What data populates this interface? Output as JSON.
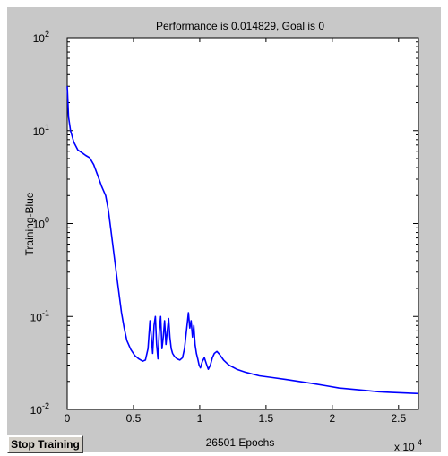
{
  "chart_data": {
    "type": "line",
    "title": "Performance is 0.014829, Goal is 0",
    "xlabel": "26501 Epochs",
    "ylabel": "Training-Blue",
    "x_multiplier_label": "x 10",
    "x_multiplier_exponent": "4",
    "xlim": [
      0,
      26501
    ],
    "ylim": [
      0.01,
      100
    ],
    "yscale": "log",
    "grid": false,
    "x_ticks": [
      {
        "value": 0,
        "label": "0"
      },
      {
        "value": 5000,
        "label": "0.5"
      },
      {
        "value": 10000,
        "label": "1"
      },
      {
        "value": 15000,
        "label": "1.5"
      },
      {
        "value": 20000,
        "label": "2"
      },
      {
        "value": 25000,
        "label": "2.5"
      }
    ],
    "y_ticks": [
      {
        "value": 0.01,
        "base": "10",
        "exp": "-2"
      },
      {
        "value": 0.1,
        "base": "10",
        "exp": "-1"
      },
      {
        "value": 1,
        "base": "10",
        "exp": "0"
      },
      {
        "value": 10,
        "base": "10",
        "exp": "1"
      },
      {
        "value": 100,
        "base": "10",
        "exp": "2"
      }
    ],
    "series": [
      {
        "color": "#0000ff",
        "points": [
          [
            0,
            30
          ],
          [
            30,
            25
          ],
          [
            100,
            14
          ],
          [
            250,
            10
          ],
          [
            500,
            7.5
          ],
          [
            800,
            6.2
          ],
          [
            1100,
            5.8
          ],
          [
            1400,
            5.4
          ],
          [
            1700,
            5.1
          ],
          [
            2000,
            4.3
          ],
          [
            2300,
            3.3
          ],
          [
            2600,
            2.5
          ],
          [
            2900,
            2.0
          ],
          [
            3100,
            1.4
          ],
          [
            3300,
            0.85
          ],
          [
            3500,
            0.5
          ],
          [
            3700,
            0.3
          ],
          [
            3900,
            0.18
          ],
          [
            4100,
            0.11
          ],
          [
            4300,
            0.075
          ],
          [
            4500,
            0.055
          ],
          [
            4800,
            0.044
          ],
          [
            5100,
            0.038
          ],
          [
            5400,
            0.035
          ],
          [
            5700,
            0.033
          ],
          [
            5900,
            0.034
          ],
          [
            6100,
            0.045
          ],
          [
            6250,
            0.09
          ],
          [
            6350,
            0.06
          ],
          [
            6450,
            0.04
          ],
          [
            6550,
            0.08
          ],
          [
            6650,
            0.1
          ],
          [
            6750,
            0.05
          ],
          [
            6850,
            0.035
          ],
          [
            6950,
            0.07
          ],
          [
            7050,
            0.1
          ],
          [
            7150,
            0.045
          ],
          [
            7250,
            0.06
          ],
          [
            7350,
            0.09
          ],
          [
            7450,
            0.05
          ],
          [
            7550,
            0.07
          ],
          [
            7650,
            0.095
          ],
          [
            7750,
            0.06
          ],
          [
            7850,
            0.045
          ],
          [
            7950,
            0.04
          ],
          [
            8100,
            0.037
          ],
          [
            8300,
            0.035
          ],
          [
            8500,
            0.034
          ],
          [
            8700,
            0.036
          ],
          [
            8850,
            0.045
          ],
          [
            9000,
            0.07
          ],
          [
            9150,
            0.11
          ],
          [
            9250,
            0.075
          ],
          [
            9350,
            0.09
          ],
          [
            9450,
            0.06
          ],
          [
            9550,
            0.08
          ],
          [
            9650,
            0.05
          ],
          [
            9750,
            0.04
          ],
          [
            9850,
            0.035
          ],
          [
            9950,
            0.03
          ],
          [
            10050,
            0.028
          ],
          [
            10200,
            0.033
          ],
          [
            10350,
            0.036
          ],
          [
            10500,
            0.031
          ],
          [
            10650,
            0.027
          ],
          [
            10800,
            0.03
          ],
          [
            10950,
            0.036
          ],
          [
            11100,
            0.04
          ],
          [
            11300,
            0.042
          ],
          [
            11500,
            0.039
          ],
          [
            11800,
            0.034
          ],
          [
            12200,
            0.03
          ],
          [
            12800,
            0.027
          ],
          [
            13500,
            0.025
          ],
          [
            14500,
            0.023
          ],
          [
            15500,
            0.022
          ],
          [
            16500,
            0.021
          ],
          [
            17500,
            0.02
          ],
          [
            18500,
            0.019
          ],
          [
            19500,
            0.018
          ],
          [
            20500,
            0.017
          ],
          [
            21500,
            0.0165
          ],
          [
            22500,
            0.016
          ],
          [
            23500,
            0.0155
          ],
          [
            24500,
            0.0152
          ],
          [
            25500,
            0.015
          ],
          [
            26501,
            0.0148
          ]
        ]
      }
    ]
  },
  "controls": {
    "stop_label": "Stop Training"
  }
}
